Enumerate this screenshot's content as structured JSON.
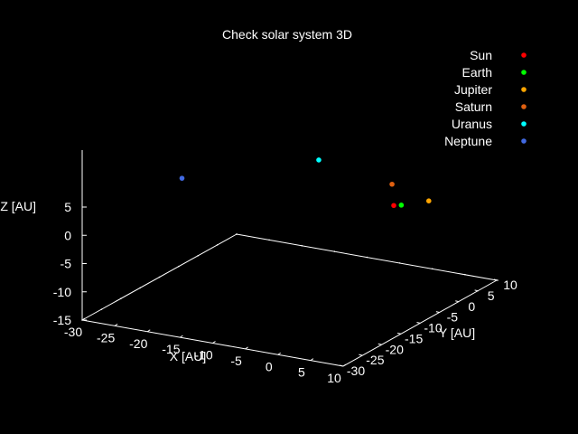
{
  "chart_data": {
    "type": "scatter",
    "title": "Check solar system 3D",
    "xlabel": "X [AU]",
    "ylabel": "Y [AU]",
    "zlabel": "Z [AU]",
    "xlim": [
      -30,
      10
    ],
    "ylim": [
      -30,
      10
    ],
    "zlim": [
      -15,
      5
    ],
    "x_ticks": [
      "-30",
      "-25",
      "-20",
      "-15",
      "-10",
      "-5",
      "0",
      "5",
      "10"
    ],
    "y_ticks": [
      "-30",
      "-25",
      "-20",
      "-15",
      "-10",
      "-5",
      "0",
      "5",
      "10"
    ],
    "z_ticks": [
      "-15",
      "-10",
      "-5",
      "0",
      "5"
    ],
    "grid": false,
    "legend_position": "top-right",
    "series": [
      {
        "name": "Sun",
        "color": "#ff0000",
        "x": 0,
        "y": 0,
        "z": 0
      },
      {
        "name": "Earth",
        "color": "#00ff00",
        "x": 0.8,
        "y": 0.6,
        "z": 0
      },
      {
        "name": "Jupiter",
        "color": "#ffa500",
        "x": 3,
        "y": 4,
        "z": -0.1
      },
      {
        "name": "Saturn",
        "color": "#e06010",
        "x": -5,
        "y": 8,
        "z": -0.3
      },
      {
        "name": "Uranus",
        "color": "#00ffff",
        "x": -18,
        "y": 11,
        "z": 0.2
      },
      {
        "name": "Neptune",
        "color": "#4169e1",
        "x": -29.5,
        "y": -5,
        "z": 0.7
      }
    ]
  }
}
